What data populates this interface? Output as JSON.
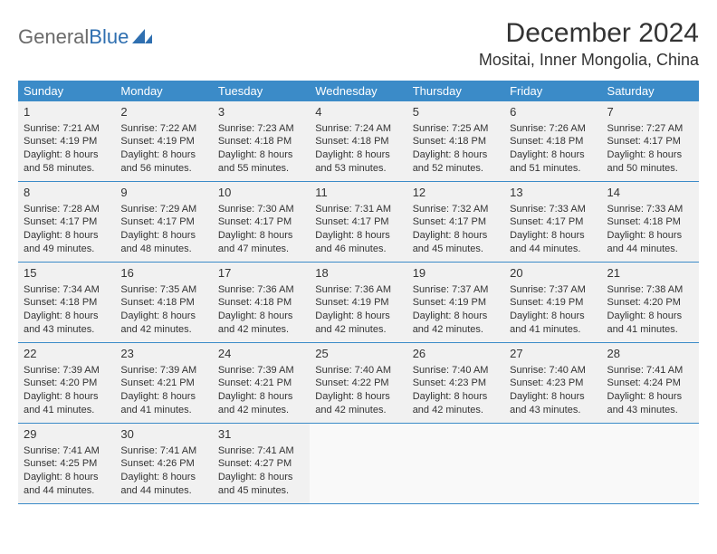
{
  "logo": {
    "text_gray": "General",
    "text_blue": "Blue"
  },
  "title": "December 2024",
  "location": "Mositai, Inner Mongolia, China",
  "colors": {
    "header_bg": "#3b8bc8",
    "header_text": "#ffffff",
    "cell_filled_bg": "#f1f1f1",
    "cell_empty_bg": "#f9f9f9",
    "row_border": "#3b8bc8",
    "body_text": "#333333",
    "logo_gray": "#6b6b6b",
    "logo_blue": "#2f6fb0"
  },
  "typography": {
    "title_fontsize_pt": 22,
    "location_fontsize_pt": 14,
    "dayheader_fontsize_pt": 10,
    "daynum_fontsize_pt": 10,
    "cell_fontsize_pt": 8
  },
  "day_headers": [
    "Sunday",
    "Monday",
    "Tuesday",
    "Wednesday",
    "Thursday",
    "Friday",
    "Saturday"
  ],
  "weeks": [
    [
      {
        "num": "1",
        "sunrise": "Sunrise: 7:21 AM",
        "sunset": "Sunset: 4:19 PM",
        "day1": "Daylight: 8 hours",
        "day2": "and 58 minutes."
      },
      {
        "num": "2",
        "sunrise": "Sunrise: 7:22 AM",
        "sunset": "Sunset: 4:19 PM",
        "day1": "Daylight: 8 hours",
        "day2": "and 56 minutes."
      },
      {
        "num": "3",
        "sunrise": "Sunrise: 7:23 AM",
        "sunset": "Sunset: 4:18 PM",
        "day1": "Daylight: 8 hours",
        "day2": "and 55 minutes."
      },
      {
        "num": "4",
        "sunrise": "Sunrise: 7:24 AM",
        "sunset": "Sunset: 4:18 PM",
        "day1": "Daylight: 8 hours",
        "day2": "and 53 minutes."
      },
      {
        "num": "5",
        "sunrise": "Sunrise: 7:25 AM",
        "sunset": "Sunset: 4:18 PM",
        "day1": "Daylight: 8 hours",
        "day2": "and 52 minutes."
      },
      {
        "num": "6",
        "sunrise": "Sunrise: 7:26 AM",
        "sunset": "Sunset: 4:18 PM",
        "day1": "Daylight: 8 hours",
        "day2": "and 51 minutes."
      },
      {
        "num": "7",
        "sunrise": "Sunrise: 7:27 AM",
        "sunset": "Sunset: 4:17 PM",
        "day1": "Daylight: 8 hours",
        "day2": "and 50 minutes."
      }
    ],
    [
      {
        "num": "8",
        "sunrise": "Sunrise: 7:28 AM",
        "sunset": "Sunset: 4:17 PM",
        "day1": "Daylight: 8 hours",
        "day2": "and 49 minutes."
      },
      {
        "num": "9",
        "sunrise": "Sunrise: 7:29 AM",
        "sunset": "Sunset: 4:17 PM",
        "day1": "Daylight: 8 hours",
        "day2": "and 48 minutes."
      },
      {
        "num": "10",
        "sunrise": "Sunrise: 7:30 AM",
        "sunset": "Sunset: 4:17 PM",
        "day1": "Daylight: 8 hours",
        "day2": "and 47 minutes."
      },
      {
        "num": "11",
        "sunrise": "Sunrise: 7:31 AM",
        "sunset": "Sunset: 4:17 PM",
        "day1": "Daylight: 8 hours",
        "day2": "and 46 minutes."
      },
      {
        "num": "12",
        "sunrise": "Sunrise: 7:32 AM",
        "sunset": "Sunset: 4:17 PM",
        "day1": "Daylight: 8 hours",
        "day2": "and 45 minutes."
      },
      {
        "num": "13",
        "sunrise": "Sunrise: 7:33 AM",
        "sunset": "Sunset: 4:17 PM",
        "day1": "Daylight: 8 hours",
        "day2": "and 44 minutes."
      },
      {
        "num": "14",
        "sunrise": "Sunrise: 7:33 AM",
        "sunset": "Sunset: 4:18 PM",
        "day1": "Daylight: 8 hours",
        "day2": "and 44 minutes."
      }
    ],
    [
      {
        "num": "15",
        "sunrise": "Sunrise: 7:34 AM",
        "sunset": "Sunset: 4:18 PM",
        "day1": "Daylight: 8 hours",
        "day2": "and 43 minutes."
      },
      {
        "num": "16",
        "sunrise": "Sunrise: 7:35 AM",
        "sunset": "Sunset: 4:18 PM",
        "day1": "Daylight: 8 hours",
        "day2": "and 42 minutes."
      },
      {
        "num": "17",
        "sunrise": "Sunrise: 7:36 AM",
        "sunset": "Sunset: 4:18 PM",
        "day1": "Daylight: 8 hours",
        "day2": "and 42 minutes."
      },
      {
        "num": "18",
        "sunrise": "Sunrise: 7:36 AM",
        "sunset": "Sunset: 4:19 PM",
        "day1": "Daylight: 8 hours",
        "day2": "and 42 minutes."
      },
      {
        "num": "19",
        "sunrise": "Sunrise: 7:37 AM",
        "sunset": "Sunset: 4:19 PM",
        "day1": "Daylight: 8 hours",
        "day2": "and 42 minutes."
      },
      {
        "num": "20",
        "sunrise": "Sunrise: 7:37 AM",
        "sunset": "Sunset: 4:19 PM",
        "day1": "Daylight: 8 hours",
        "day2": "and 41 minutes."
      },
      {
        "num": "21",
        "sunrise": "Sunrise: 7:38 AM",
        "sunset": "Sunset: 4:20 PM",
        "day1": "Daylight: 8 hours",
        "day2": "and 41 minutes."
      }
    ],
    [
      {
        "num": "22",
        "sunrise": "Sunrise: 7:39 AM",
        "sunset": "Sunset: 4:20 PM",
        "day1": "Daylight: 8 hours",
        "day2": "and 41 minutes."
      },
      {
        "num": "23",
        "sunrise": "Sunrise: 7:39 AM",
        "sunset": "Sunset: 4:21 PM",
        "day1": "Daylight: 8 hours",
        "day2": "and 41 minutes."
      },
      {
        "num": "24",
        "sunrise": "Sunrise: 7:39 AM",
        "sunset": "Sunset: 4:21 PM",
        "day1": "Daylight: 8 hours",
        "day2": "and 42 minutes."
      },
      {
        "num": "25",
        "sunrise": "Sunrise: 7:40 AM",
        "sunset": "Sunset: 4:22 PM",
        "day1": "Daylight: 8 hours",
        "day2": "and 42 minutes."
      },
      {
        "num": "26",
        "sunrise": "Sunrise: 7:40 AM",
        "sunset": "Sunset: 4:23 PM",
        "day1": "Daylight: 8 hours",
        "day2": "and 42 minutes."
      },
      {
        "num": "27",
        "sunrise": "Sunrise: 7:40 AM",
        "sunset": "Sunset: 4:23 PM",
        "day1": "Daylight: 8 hours",
        "day2": "and 43 minutes."
      },
      {
        "num": "28",
        "sunrise": "Sunrise: 7:41 AM",
        "sunset": "Sunset: 4:24 PM",
        "day1": "Daylight: 8 hours",
        "day2": "and 43 minutes."
      }
    ],
    [
      {
        "num": "29",
        "sunrise": "Sunrise: 7:41 AM",
        "sunset": "Sunset: 4:25 PM",
        "day1": "Daylight: 8 hours",
        "day2": "and 44 minutes."
      },
      {
        "num": "30",
        "sunrise": "Sunrise: 7:41 AM",
        "sunset": "Sunset: 4:26 PM",
        "day1": "Daylight: 8 hours",
        "day2": "and 44 minutes."
      },
      {
        "num": "31",
        "sunrise": "Sunrise: 7:41 AM",
        "sunset": "Sunset: 4:27 PM",
        "day1": "Daylight: 8 hours",
        "day2": "and 45 minutes."
      },
      null,
      null,
      null,
      null
    ]
  ]
}
